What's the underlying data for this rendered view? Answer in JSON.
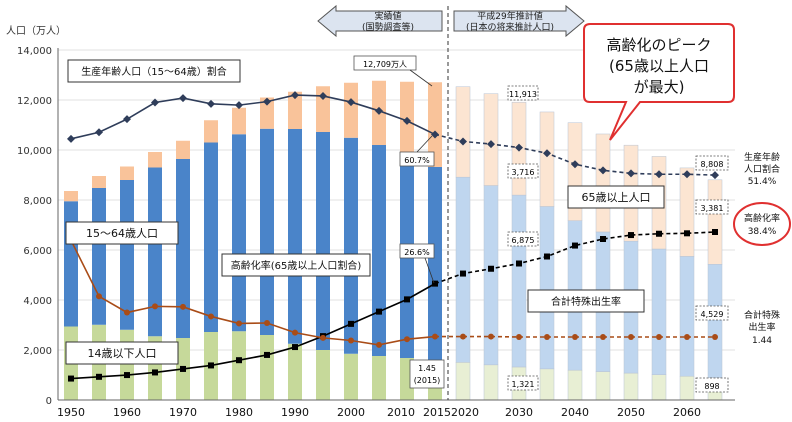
{
  "chart_data": {
    "type": "bar",
    "title": "",
    "ylabel": "人口（万人）",
    "ylim": [
      0,
      14000
    ],
    "yticks": [
      "0",
      "2,000",
      "4,000",
      "6,000",
      "8,000",
      "10,000",
      "12,000",
      "14,000"
    ],
    "x": [
      1950,
      1955,
      1960,
      1965,
      1970,
      1975,
      1980,
      1985,
      1990,
      1995,
      2000,
      2005,
      2010,
      2015,
      2020,
      2025,
      2030,
      2035,
      2040,
      2045,
      2050,
      2055,
      2060,
      2065
    ],
    "x_tick_labels": [
      "1950",
      "1960",
      "1970",
      "1980",
      "1990",
      "2000",
      "2010",
      "2015",
      "2020",
      "2030",
      "2040",
      "2050",
      "2060"
    ],
    "actual_until": 2015,
    "colors": {
      "age0_14": "#c6d99a",
      "age15_64": "#4a84c9",
      "age65": "#f9c39a",
      "age0_14_proj": "#e8efd4",
      "age15_64_proj": "#bfd6ef",
      "age65_proj": "#fce5d2",
      "working_line": "#2f3d5a",
      "aging_line": "#000000",
      "fertility_line": "#a94c17",
      "callout_red": "#e03030"
    },
    "series": [
      {
        "name": "14歳以下人口",
        "values": [
          2940,
          3010,
          2810,
          2550,
          2480,
          2720,
          2750,
          2600,
          2250,
          2000,
          1850,
          1760,
          1680,
          1595,
          1507,
          1407,
          1321,
          1246,
          1194,
          1138,
          1077,
          1012,
          951,
          898
        ]
      },
      {
        "name": "15～64歳人口",
        "values": [
          5010,
          5470,
          5990,
          6750,
          7160,
          7580,
          7880,
          8250,
          8590,
          8720,
          8640,
          8440,
          8100,
          7728,
          7406,
          7170,
          6875,
          6494,
          5978,
          5584,
          5275,
          5028,
          4793,
          4529
        ]
      },
      {
        "name": "65歳以上人口",
        "values": [
          410,
          480,
          540,
          620,
          730,
          890,
          1060,
          1250,
          1490,
          1830,
          2200,
          2570,
          2950,
          3387,
          3619,
          3677,
          3716,
          3782,
          3921,
          3919,
          3841,
          3704,
          3540,
          3381
        ]
      }
    ],
    "lines": [
      {
        "name": "生産年齢人口（15～64歳）割合",
        "values": [
          59.7,
          61.2,
          64.2,
          68.0,
          69.0,
          67.7,
          67.4,
          68.2,
          69.7,
          69.5,
          68.1,
          66.1,
          63.8,
          60.7,
          59.1,
          58.5,
          57.7,
          56.4,
          53.9,
          52.5,
          51.8,
          51.6,
          51.6,
          51.4
        ]
      },
      {
        "name": "高齢化率（65歳以上人口割合）",
        "values": [
          4.9,
          5.3,
          5.7,
          6.3,
          7.1,
          7.9,
          9.1,
          10.3,
          12.1,
          14.6,
          17.4,
          20.2,
          23.0,
          26.6,
          28.9,
          30.0,
          31.2,
          32.8,
          35.3,
          36.8,
          37.7,
          38.0,
          38.1,
          38.4
        ]
      },
      {
        "name": "合計特殊出生率",
        "values": [
          3.65,
          2.37,
          2.0,
          2.14,
          2.13,
          1.91,
          1.75,
          1.76,
          1.54,
          1.42,
          1.36,
          1.26,
          1.39,
          1.45,
          1.45,
          1.45,
          1.44,
          1.44,
          1.44,
          1.44,
          1.44,
          1.44,
          1.44,
          1.44
        ]
      }
    ],
    "header_left_l1": "実績値",
    "header_left_l2": "(国勢調査等)",
    "header_right_l1": "平成29年推計値",
    "header_right_l2": "(日本の将来推計人口)",
    "callout_line1": "高齢化のピーク",
    "callout_line2": "(65歳以上人口",
    "callout_line3": "が最大)",
    "labels": {
      "working_share": "生産年齢人口（15～64歳）割合",
      "age15_64": "15～64歳人口",
      "age0_14": "14歳以下人口",
      "aging_rate": "高齢化率(65歳以上人口割合)",
      "age65": "65歳以上人口",
      "fertility": "合計特殊出生率"
    },
    "data_labels": {
      "total_2015": "12,709万人",
      "working_2015": "60.7%",
      "aging_2015": "26.6%",
      "fertility_2015_l1": "1.45",
      "fertility_2015_l2": "(2015)",
      "age65_2030": "3,716",
      "age15_64_2030": "6,875",
      "age0_14_2030": "1,321",
      "total_2030": "11,913",
      "total_2065": "8,808",
      "age65_2065": "3,381",
      "age15_64_2065": "4,529",
      "age0_14_2065": "898"
    },
    "right_labels": {
      "working_l1": "生産年齢",
      "working_l2": "人口割合",
      "working_val": "51.4%",
      "aging_l1": "高齢化率",
      "aging_val": "38.4%",
      "fert_l1": "合計特殊",
      "fert_l2": "出生率",
      "fert_val": "1.44"
    }
  }
}
